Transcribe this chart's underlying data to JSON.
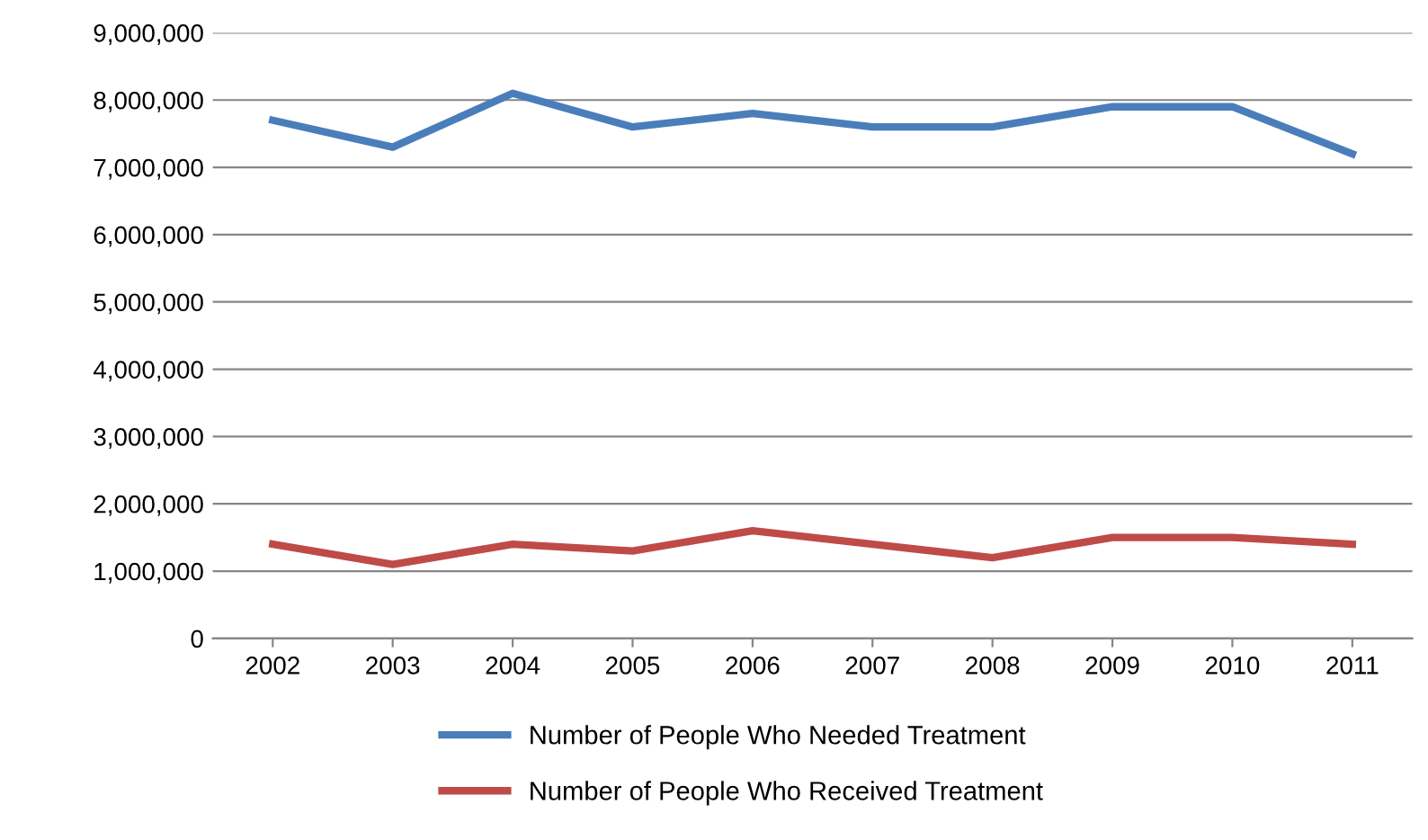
{
  "chart_data": {
    "type": "line",
    "categories": [
      "2002",
      "2003",
      "2004",
      "2005",
      "2006",
      "2007",
      "2008",
      "2009",
      "2010",
      "2011"
    ],
    "series": [
      {
        "name": "Number of People Who Needed Treatment",
        "color": "#4a7ebb",
        "values": [
          7700000,
          7300000,
          8100000,
          7600000,
          7800000,
          7600000,
          7600000,
          7900000,
          7900000,
          7200000
        ]
      },
      {
        "name": "Number of People Who Received Treatment",
        "color": "#be4b48",
        "values": [
          1400000,
          1100000,
          1400000,
          1300000,
          1600000,
          1400000,
          1200000,
          1500000,
          1500000,
          1400000
        ]
      }
    ],
    "ylim": [
      0,
      9000000
    ],
    "yticks": [
      {
        "value": 0,
        "label": "0"
      },
      {
        "value": 1000000,
        "label": "1,000,000"
      },
      {
        "value": 2000000,
        "label": "2,000,000"
      },
      {
        "value": 3000000,
        "label": "3,000,000"
      },
      {
        "value": 4000000,
        "label": "4,000,000"
      },
      {
        "value": 5000000,
        "label": "5,000,000"
      },
      {
        "value": 6000000,
        "label": "6,000,000"
      },
      {
        "value": 7000000,
        "label": "7,000,000"
      },
      {
        "value": 8000000,
        "label": "8,000,000"
      },
      {
        "value": 9000000,
        "label": "9,000,000"
      }
    ],
    "grid": "y",
    "legend": "bottom",
    "marker": "none",
    "line_style": "solid"
  }
}
